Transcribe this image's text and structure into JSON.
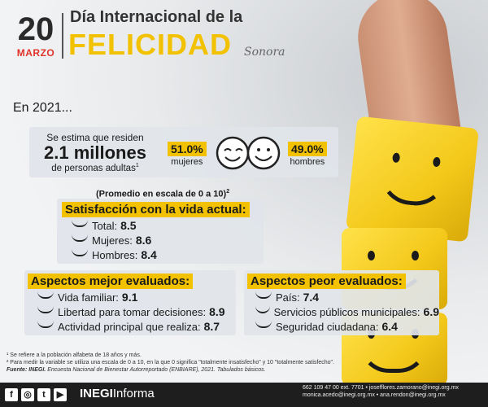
{
  "header": {
    "day": "20",
    "month": "MARZO",
    "title_line1": "Día Internacional de la",
    "title_line2": "FELICIDAD",
    "subtitle": "Sonora"
  },
  "intro": {
    "year_label": "En 2021..."
  },
  "population": {
    "line1": "Se estima que residen",
    "amount": "2.1 millones",
    "line3": "de personas adultas",
    "footnote_mark": "1",
    "women_pct": "51.0%",
    "women_label": "mujeres",
    "men_pct": "49.0%",
    "men_label": "hombres"
  },
  "satisfaction": {
    "scale_note": "(Promedio en escala de 0 a 10)",
    "scale_mark": "2",
    "title": "Satisfacción con la vida actual:",
    "items": [
      {
        "label": "Total:",
        "value": "8.5"
      },
      {
        "label": "Mujeres:",
        "value": "8.6"
      },
      {
        "label": "Hombres:",
        "value": "8.4"
      }
    ]
  },
  "best": {
    "title": "Aspectos mejor evaluados:",
    "items": [
      {
        "label": "Vida familiar:",
        "value": "9.1"
      },
      {
        "label": "Libertad para tomar decisiones:",
        "value": "8.9"
      },
      {
        "label": "Actividad principal que realiza:",
        "value": "8.7"
      }
    ]
  },
  "worst": {
    "title": "Aspectos peor evaluados:",
    "items": [
      {
        "label": "País:",
        "value": "7.4"
      },
      {
        "label": "Servicios públicos municipales:",
        "value": "6.9"
      },
      {
        "label": "Seguridad ciudadana:",
        "value": "6.4"
      }
    ]
  },
  "notes": {
    "note1": "¹ Se refiere a la población alfabeta de 18 años y más.",
    "note2": "² Para medir la variable se utiliza una escala de 0 a 10, en la que 0 significa \"totalmente insatisfecho\" y 10 \"totalmente satisfecho\".",
    "source_label": "Fuente: INEGI.",
    "source_text": "Encuesta Nacional de Bienestar Autorreportado (ENBIARE), 2021. Tabulados básicos."
  },
  "footer": {
    "brand_bold": "INEGI",
    "brand_rest": "Informa",
    "contact1": "662 109 47 00 ext. 7701 • josefflores.zamorano@inegi.org.mx",
    "contact2": "monica.acedo@inegi.org.mx • ana.rendon@inegi.org.mx",
    "social": [
      "f",
      "◎",
      "t",
      "▶"
    ]
  },
  "colors": {
    "accent": "#f2c200",
    "dark": "#1e1e1e",
    "date_red": "#e0342a"
  },
  "icons": [
    "happy-faces-icon",
    "smile-bullet-icon",
    "facebook-icon",
    "instagram-icon",
    "twitter-icon",
    "youtube-icon"
  ]
}
